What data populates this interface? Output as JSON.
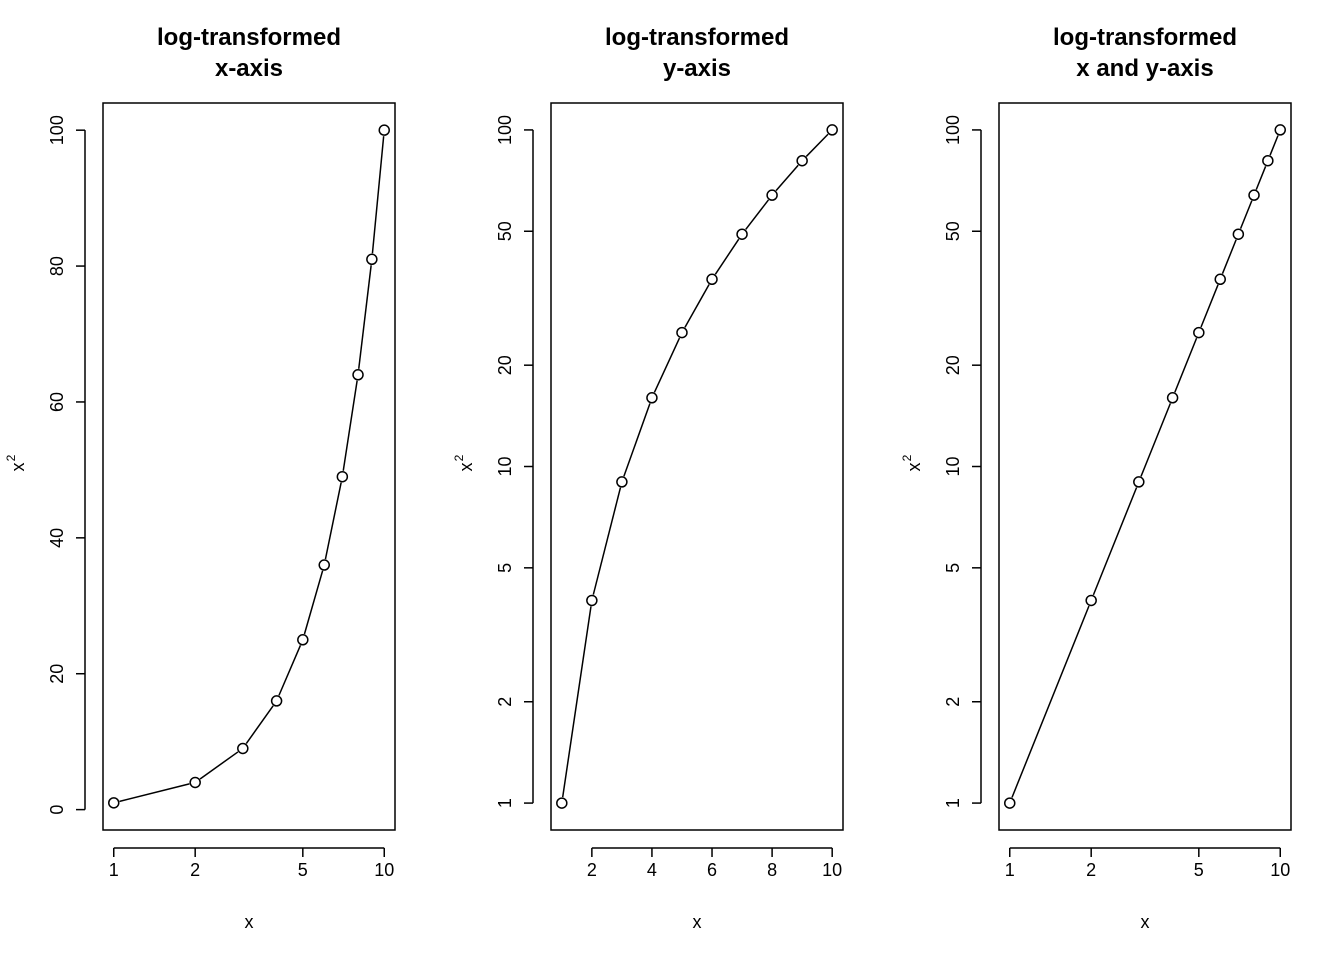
{
  "chart_data": [
    {
      "type": "line",
      "title_lines": [
        "log-transformed",
        "x-axis"
      ],
      "xlabel": "x",
      "ylabel": "x",
      "ylabel_superscript": "2",
      "x_scale": "log",
      "y_scale": "linear",
      "xlim": [
        0.9125,
        10.9589
      ],
      "ylim": [
        -3.0,
        104.0
      ],
      "x_ticks": [
        1,
        2,
        5,
        10
      ],
      "y_ticks": [
        0,
        20,
        40,
        60,
        80,
        100
      ],
      "x_tick_labels": [
        "1",
        "2",
        "5",
        "10"
      ],
      "y_tick_labels": [
        "0",
        "20",
        "40",
        "60",
        "80",
        "100"
      ],
      "series": [
        {
          "x": [
            1,
            2,
            3,
            4,
            5,
            6,
            7,
            8,
            9,
            10
          ],
          "values": [
            1,
            4,
            9,
            16,
            25,
            36,
            49,
            64,
            81,
            100
          ]
        }
      ],
      "marker": "open-circle",
      "grid": false
    },
    {
      "type": "line",
      "title_lines": [
        "log-transformed",
        "y-axis"
      ],
      "xlabel": "x",
      "ylabel": "x",
      "ylabel_superscript": "2",
      "x_scale": "linear",
      "y_scale": "log",
      "xlim": [
        0.64,
        10.36
      ],
      "ylim": [
        0.8318,
        120.23
      ],
      "x_ticks": [
        2,
        4,
        6,
        8,
        10
      ],
      "y_ticks": [
        1,
        2,
        5,
        10,
        20,
        50,
        100
      ],
      "x_tick_labels": [
        "2",
        "4",
        "6",
        "8",
        "10"
      ],
      "y_tick_labels": [
        "1",
        "2",
        "5",
        "10",
        "20",
        "50",
        "100"
      ],
      "series": [
        {
          "x": [
            1,
            2,
            3,
            4,
            5,
            6,
            7,
            8,
            9,
            10
          ],
          "values": [
            1,
            4,
            9,
            16,
            25,
            36,
            49,
            64,
            81,
            100
          ]
        }
      ],
      "marker": "open-circle",
      "grid": false
    },
    {
      "type": "line",
      "title_lines": [
        "log-transformed",
        "x and y-axis"
      ],
      "xlabel": "x",
      "ylabel": "x",
      "ylabel_superscript": "2",
      "x_scale": "log",
      "y_scale": "log",
      "xlim": [
        0.9125,
        10.9589
      ],
      "ylim": [
        0.8318,
        120.23
      ],
      "x_ticks": [
        1,
        2,
        5,
        10
      ],
      "y_ticks": [
        1,
        2,
        5,
        10,
        20,
        50,
        100
      ],
      "x_tick_labels": [
        "1",
        "2",
        "5",
        "10"
      ],
      "y_tick_labels": [
        "1",
        "2",
        "5",
        "10",
        "20",
        "50",
        "100"
      ],
      "series": [
        {
          "x": [
            1,
            2,
            3,
            4,
            5,
            6,
            7,
            8,
            9,
            10
          ],
          "values": [
            1,
            4,
            9,
            16,
            25,
            36,
            49,
            64,
            81,
            100
          ]
        }
      ],
      "marker": "open-circle",
      "grid": false
    }
  ]
}
